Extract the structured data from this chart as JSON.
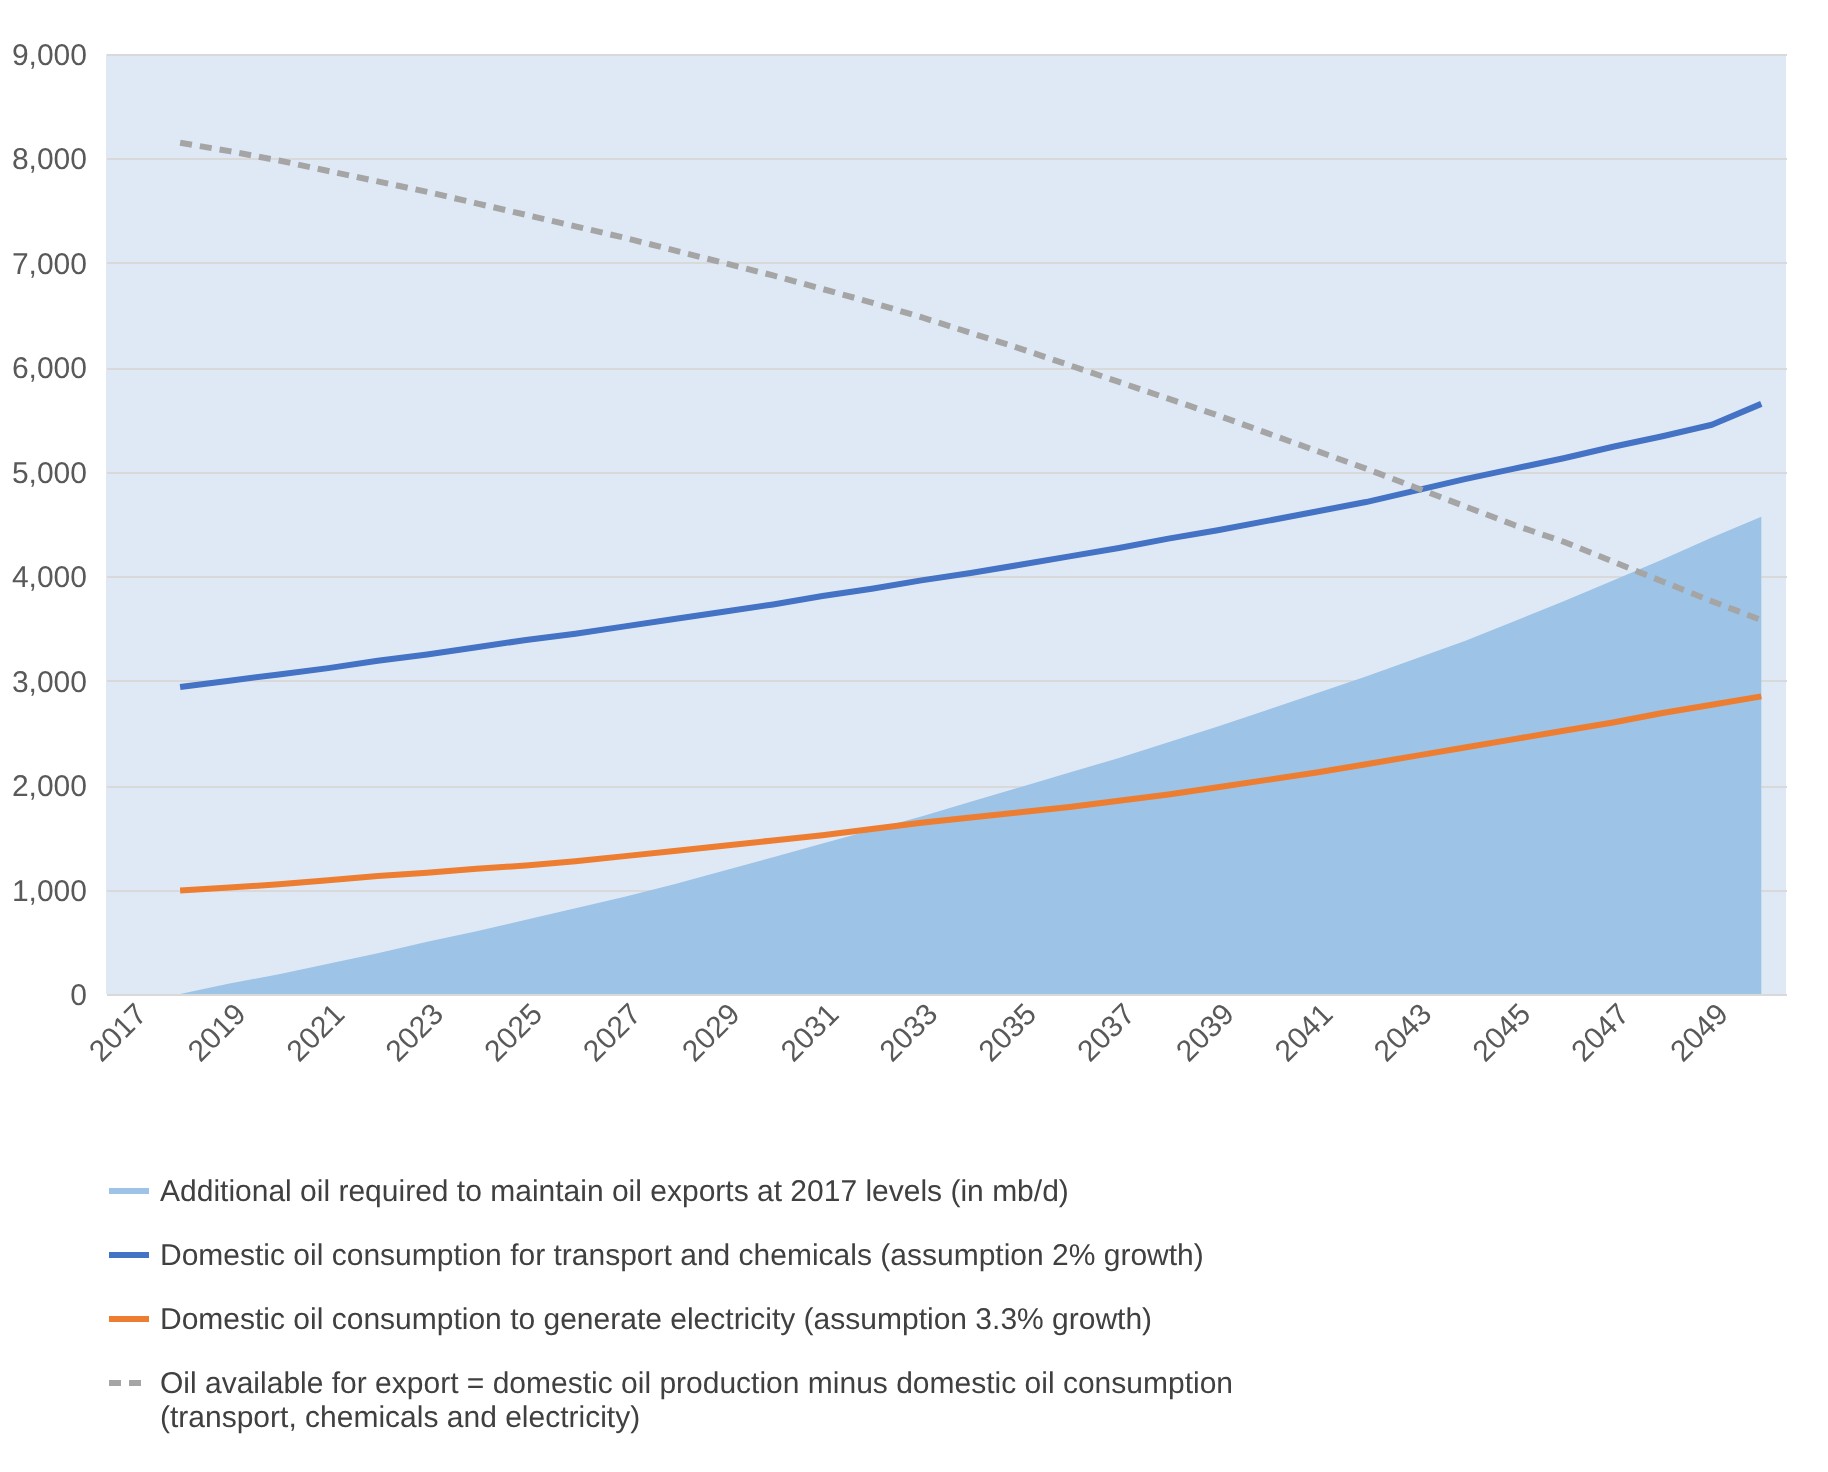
{
  "chart_data": {
    "type": "line",
    "categories": [
      "2017",
      null,
      "2019",
      null,
      "2021",
      null,
      "2023",
      null,
      "2025",
      null,
      "2027",
      null,
      "2029",
      null,
      "2031",
      null,
      "2033",
      null,
      "2035",
      null,
      "2037",
      null,
      "2039",
      null,
      "2041",
      null,
      "2043",
      null,
      "2045",
      null,
      "2047",
      null,
      "2049",
      null
    ],
    "series": [
      {
        "name": "Additional oil required to maintain oil exports at 2017 levels (in mb/d)",
        "type": "area",
        "color": "#9dc3e6",
        "values": [
          null,
          0,
          100,
          190,
          290,
          390,
          500,
          600,
          710,
          820,
          930,
          1050,
          1180,
          1310,
          1440,
          1570,
          1700,
          1840,
          1980,
          2120,
          2260,
          2410,
          2560,
          2720,
          2880,
          3040,
          3210,
          3380,
          3570,
          3760,
          3960,
          4160,
          4370,
          4570
        ]
      },
      {
        "name": "Domestic oil consumption for transport and chemicals (assumption 2% growth)",
        "line_style": "solid",
        "color": "#4472c4",
        "values": [
          null,
          2940,
          3000,
          3060,
          3120,
          3190,
          3250,
          3320,
          3390,
          3450,
          3520,
          3590,
          3660,
          3730,
          3810,
          3880,
          3960,
          4030,
          4110,
          4190,
          4270,
          4360,
          4440,
          4530,
          4620,
          4710,
          4820,
          4930,
          5030,
          5130,
          5240,
          5340,
          5450,
          5650
        ]
      },
      {
        "name": "Domestic oil consumption to generate electricity (assumption 3.3% growth)",
        "line_style": "solid",
        "color": "#ed7d31",
        "values": [
          null,
          990,
          1020,
          1050,
          1090,
          1130,
          1160,
          1200,
          1230,
          1270,
          1320,
          1370,
          1420,
          1470,
          1520,
          1580,
          1640,
          1690,
          1740,
          1790,
          1850,
          1910,
          1980,
          2050,
          2120,
          2200,
          2280,
          2360,
          2440,
          2520,
          2600,
          2690,
          2770,
          2850
        ]
      },
      {
        "name": "Oil available for export = domestic oil production minus domestic oil consumption (transport, chemicals and electricity)",
        "line_style": "dashed",
        "color": "#a5a5a5",
        "values": [
          null,
          8150,
          8070,
          7980,
          7880,
          7780,
          7680,
          7570,
          7460,
          7350,
          7240,
          7120,
          7000,
          6880,
          6750,
          6620,
          6480,
          6330,
          6180,
          6020,
          5860,
          5700,
          5540,
          5370,
          5200,
          5030,
          4850,
          4670,
          4490,
          4330,
          4140,
          3950,
          3760,
          3580
        ]
      }
    ],
    "ylim": [
      0,
      9000
    ],
    "yticks": [
      {
        "value": 0,
        "label": "0"
      },
      {
        "value": 1000,
        "label": "1,000"
      },
      {
        "value": 2000,
        "label": "2,000"
      },
      {
        "value": 3000,
        "label": "3,000"
      },
      {
        "value": 4000,
        "label": "4,000"
      },
      {
        "value": 5000,
        "label": "5,000"
      },
      {
        "value": 6000,
        "label": "6,000"
      },
      {
        "value": 7000,
        "label": "7,000"
      },
      {
        "value": 8000,
        "label": "8,000"
      },
      {
        "value": 9000,
        "label": "9,000"
      }
    ],
    "grid": "y",
    "legend": "bottom",
    "marker": "none"
  }
}
